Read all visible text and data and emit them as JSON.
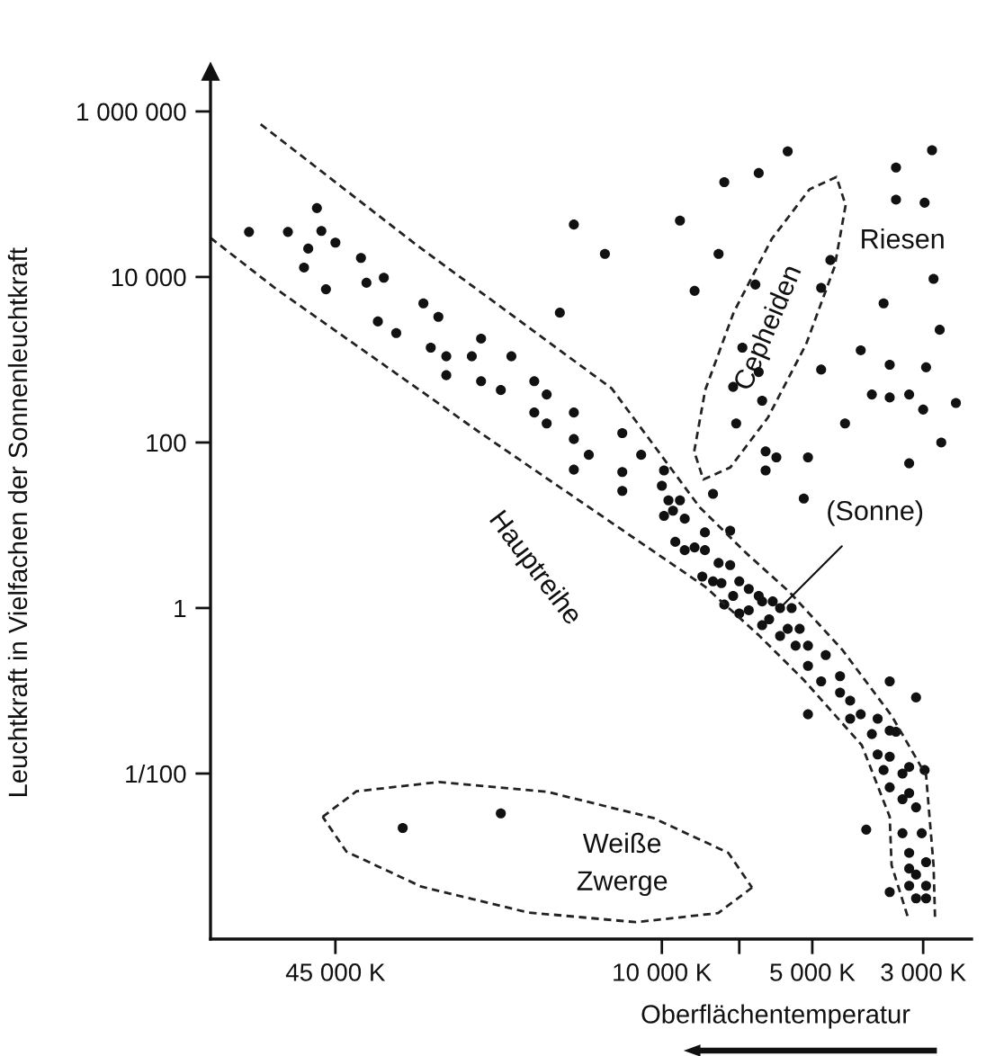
{
  "chart_data": {
    "type": "scatter",
    "xlabel": "Oberflächentemperatur",
    "ylabel": "Leuchtkraft in Vielfachen der Sonnenleuchtkraft",
    "log": "xy",
    "xlim": [
      80000,
      2400
    ],
    "xticks": [
      {
        "value": 45000,
        "label": "45 000 K"
      },
      {
        "value": 10000,
        "label": "10 000 K"
      },
      {
        "value": 7000,
        "label": null
      },
      {
        "value": 5000,
        "label": "5 000 K"
      },
      {
        "value": 3000,
        "label": "3 000 K"
      }
    ],
    "ylim": [
      0.0001,
      3000000
    ],
    "yticks": [
      {
        "value": 0.01,
        "label": "1/100"
      },
      1,
      100,
      {
        "value": 10000,
        "label": "10 000"
      },
      {
        "value": 1000000,
        "label": "1 000 000"
      }
    ],
    "annotations": [
      "Riesen",
      "Cepheiden",
      "Hauptreihe",
      {
        "text": "(Sonne)",
        "x": 5800,
        "y": 1
      },
      "Weiße\nZwerge"
    ],
    "series": [
      {
        "color": "#111111",
        "x": [
          49000,
          67000,
          56000,
          48000,
          51000,
          45000,
          52000,
          40000,
          39000,
          36000,
          47000,
          30000,
          28000,
          37000,
          34000,
          23000,
          29000,
          27000,
          24000,
          20000,
          27000,
          23000,
          21000,
          18000,
          17000,
          18000,
          15000,
          17000,
          15000,
          12000,
          14000,
          11000,
          15000,
          12000,
          9900,
          12000,
          10000,
          9700,
          9200,
          9500,
          9000,
          9900,
          9400,
          8600,
          8200,
          8200,
          9000,
          8300,
          7900,
          7300,
          7700,
          7300,
          7600,
          7000,
          7200,
          6700,
          6400,
          6300,
          6000,
          5500,
          7500,
          7000,
          6700,
          6300,
          6100,
          5800,
          5800,
          5600,
          5300,
          5400,
          5100,
          5100,
          4700,
          4800,
          4400,
          4400,
          4200,
          4200,
          4000,
          3800,
          3700,
          3500,
          3400,
          3700,
          3500,
          3600,
          3300,
          3200,
          2980,
          3500,
          3300,
          3200,
          3100,
          3300,
          3020,
          3200,
          2960,
          3200,
          3100,
          3200,
          2960,
          3100,
          2960,
          3500,
          3100,
          5100,
          3900,
          3500,
          15000,
          9200,
          13000,
          8600,
          16000,
          7900,
          33000,
          21000,
          5600,
          2880,
          6400,
          7500,
          3400,
          3400,
          2980,
          7700,
          4600,
          2860,
          6500,
          4800,
          3600,
          2780,
          6900,
          4000,
          3500,
          2960,
          6400,
          4800,
          7200,
          3800,
          3500,
          3200,
          6300,
          2580,
          3000,
          7100,
          4300,
          2760,
          6200,
          5900,
          5100,
          6200,
          3200,
          5200
        ],
        "marker": "circle",
        "values": [
          68000,
          35000,
          35000,
          36000,
          22000,
          26000,
          13000,
          17000,
          8500,
          9800,
          7100,
          4800,
          3300,
          2900,
          2100,
          1800,
          1400,
          1100,
          1100,
          1100,
          650,
          550,
          430,
          550,
          380,
          230,
          230,
          170,
          110,
          130,
          71,
          71,
          47,
          44,
          46,
          26,
          30,
          20,
          20,
          15,
          12,
          13,
          6.3,
          5.4,
          8.2,
          5.0,
          5.0,
          2.4,
          2.1,
          8.6,
          3.5,
          3.3,
          2.0,
          2.1,
          1.4,
          1.7,
          1.4,
          1.2,
          1.2,
          1.0,
          1.1,
          0.86,
          0.94,
          0.62,
          0.73,
          1,
          0.46,
          0.56,
          0.56,
          0.35,
          0.35,
          0.2,
          0.27,
          0.13,
          0.15,
          0.095,
          0.076,
          0.046,
          0.052,
          0.03,
          0.046,
          0.033,
          0.032,
          0.017,
          0.016,
          0.011,
          0.01,
          0.012,
          0.011,
          0.0068,
          0.0049,
          0.0058,
          0.0039,
          0.0019,
          0.0019,
          0.0011,
          0.00085,
          0.00071,
          0.0006,
          0.00044,
          0.00044,
          0.00031,
          0.00031,
          0.13,
          0.083,
          0.052,
          0.0021,
          0.00037,
          43000,
          48000,
          19000,
          6800,
          3700,
          24,
          0.0022,
          0.0033,
          330000,
          340000,
          180000,
          140000,
          210000,
          86000,
          79000,
          19000,
          16000,
          9500,
          8100,
          7400,
          4800,
          2300,
          1400,
          1300,
          870,
          810,
          710,
          760,
          470,
          380,
          350,
          380,
          320,
          300,
          250,
          170,
          170,
          100,
          78,
          66,
          66,
          46,
          56,
          21
        ]
      },
      {
        "type": "line",
        "color": "#222222",
        "line_style": "dashed",
        "marker": "none",
        "x": [
          63500,
          31000,
          12600,
          8400,
          6750,
          5560,
          4360,
          3470,
          2960,
          2860,
          2840
        ],
        "values": [
          700000,
          24500,
          450,
          16.5,
          4.5,
          1.57,
          0.316,
          0.05,
          0.0095,
          0.00078,
          0.000174
        ]
      },
      {
        "type": "line",
        "color": "#222222",
        "line_style": "dashed",
        "marker": "none",
        "x": [
          80000,
          59000,
          23000,
          13000,
          8200,
          6400,
          5200,
          3980,
          3500,
          3470,
          3210
        ],
        "values": [
          29700,
          7100,
          129,
          12.2,
          1.82,
          0.47,
          0.135,
          0.022,
          0.003,
          0.00078,
          0.000174
        ]
      },
      {
        "type": "line",
        "color": "#222222",
        "line_style": "dashed",
        "marker": "none",
        "x": [
          4288,
          4510,
          5145,
          6135,
          7295,
          8260,
          8615
        ],
        "values": [
          73700,
          13400,
          1540,
          200,
          50,
          35.7,
          78
        ]
      },
      {
        "type": "line",
        "color": "#222222",
        "line_style": "dashed",
        "marker": "none",
        "x": [
          8615,
          8190,
          7180,
          6025,
          5065,
          4473,
          4288
        ],
        "values": [
          78,
          430,
          3750,
          28900,
          114500,
          161800,
          73700
        ]
      },
      {
        "type": "line",
        "color": "#222222",
        "line_style": "dashed",
        "marker": "none",
        "x": [
          6600,
          7715,
          11270,
          18570,
          30290,
          42770,
          47720
        ],
        "values": [
          0.000419,
          0.000206,
          0.00016,
          0.00021,
          0.00043,
          0.00114,
          0.003
        ]
      },
      {
        "type": "line",
        "color": "#222222",
        "line_style": "dashed",
        "marker": "none",
        "x": [
          47720,
          40830,
          27950,
          16940,
          10390,
          7360,
          6600
        ],
        "values": [
          0.003,
          0.0061,
          0.0079,
          0.006,
          0.0029,
          0.0011,
          0.000419
        ]
      }
    ]
  }
}
